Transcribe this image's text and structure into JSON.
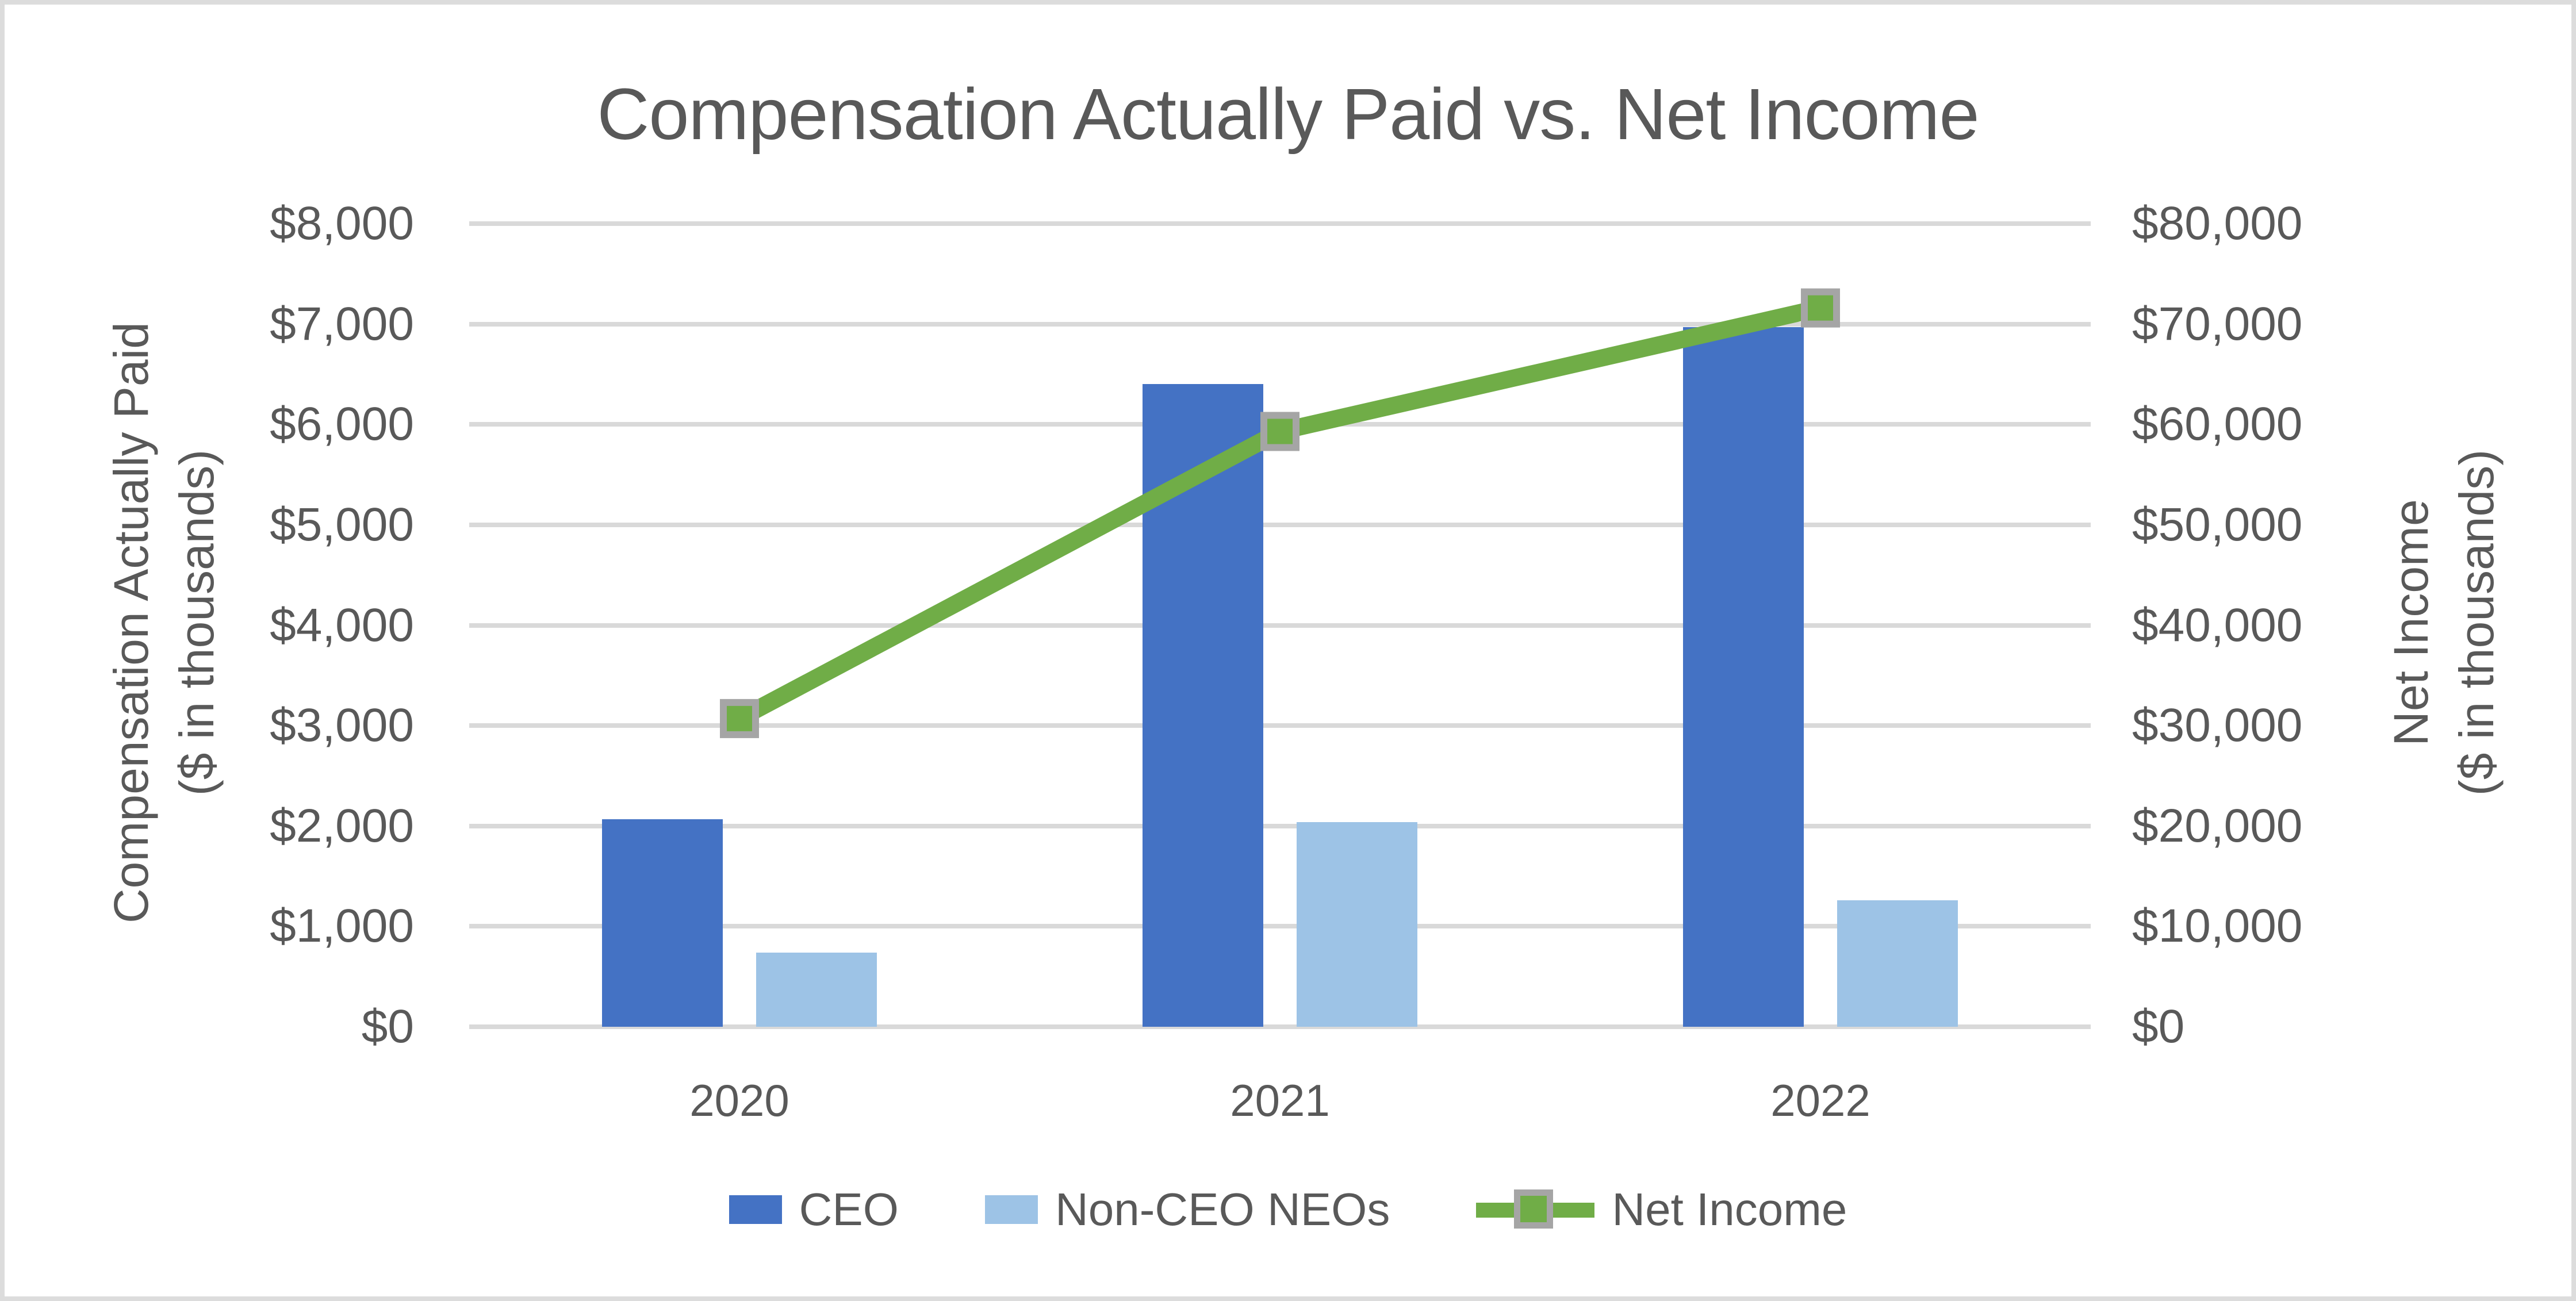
{
  "chart_data": {
    "type": "bar+line-combo",
    "title": "Compensation Actually Paid vs. Net Income",
    "categories": [
      "2020",
      "2021",
      "2022"
    ],
    "series": [
      {
        "name": "CEO",
        "type": "bar",
        "axis": "left",
        "color": "#4472C4",
        "values": [
          2070,
          6400,
          6970
        ]
      },
      {
        "name": "Non-CEO NEOs",
        "type": "bar",
        "axis": "left",
        "color": "#9DC3E6",
        "values": [
          740,
          2040,
          1260
        ]
      },
      {
        "name": "Net Income",
        "type": "line",
        "axis": "right",
        "color": "#70AD47",
        "marker_fill": "#70AD47",
        "marker_border": "#A5A5A5",
        "values": [
          30700,
          59300,
          71600
        ]
      }
    ],
    "left_axis": {
      "title_line1": "Compensation Actually Paid",
      "title_line2": "($ in thousands)",
      "min": 0,
      "max": 8000,
      "step": 1000,
      "tick_labels": [
        "$0",
        "$1,000",
        "$2,000",
        "$3,000",
        "$4,000",
        "$5,000",
        "$6,000",
        "$7,000",
        "$8,000"
      ]
    },
    "right_axis": {
      "title_line1": "Net Income",
      "title_line2": "($ in thousands)",
      "min": 0,
      "max": 80000,
      "step": 10000,
      "tick_labels": [
        "$0",
        "$10,000",
        "$20,000",
        "$30,000",
        "$40,000",
        "$50,000",
        "$60,000",
        "$70,000",
        "$80,000"
      ]
    },
    "grid": true,
    "legend_position": "bottom",
    "colors": {
      "gridline": "#D9D9D9",
      "text": "#595959",
      "border": "#DCDCDC",
      "background": "#FFFFFF"
    }
  }
}
